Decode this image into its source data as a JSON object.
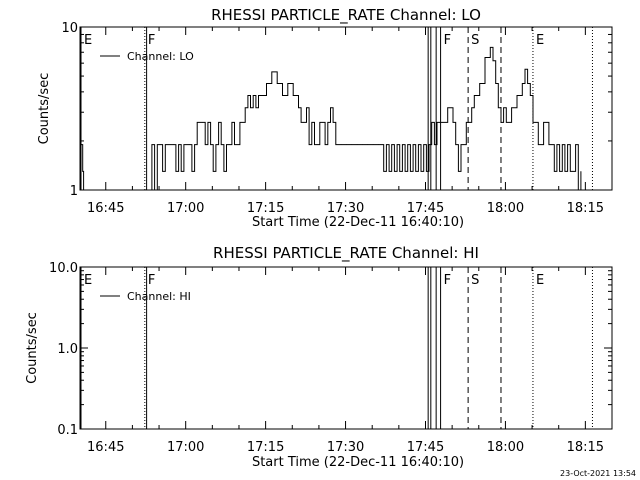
{
  "footer_timestamp": "23-Oct-2021 13:54",
  "colors": {
    "background": "#ffffff",
    "ink": "#000000"
  },
  "chart_data": [
    {
      "type": "line",
      "title": "RHESSI PARTICLE_RATE Channel: LO",
      "xlabel": "Start Time (22-Dec-11 16:40:10)",
      "ylabel": "Counts/sec",
      "x_scale": "time",
      "xlim": [
        "16:40:10",
        "18:20"
      ],
      "x_ticks": [
        "16:45",
        "17:00",
        "17:15",
        "17:30",
        "17:45",
        "18:00",
        "18:15"
      ],
      "y_scale": "log",
      "ylim": [
        1,
        10
      ],
      "y_ticks": [
        "1",
        "10"
      ],
      "legend": {
        "position": "top-left",
        "entries": [
          "Channel: LO"
        ]
      },
      "series": [
        {
          "name": "Channel: LO",
          "x": [
            "16:40:20",
            "16:40:40",
            "16:40:50",
            "16:53:10",
            "16:53:40",
            "16:54:10",
            "16:54:40",
            "16:55:10",
            "16:55:40",
            "16:56:10",
            "16:57:40",
            "16:58:10",
            "16:58:40",
            "16:59:10",
            "16:59:40",
            "17:00:40",
            "17:01:10",
            "17:01:40",
            "17:02:10",
            "17:03:10",
            "17:03:40",
            "17:04:10",
            "17:04:40",
            "17:05:10",
            "17:05:40",
            "17:06:10",
            "17:06:40",
            "17:07:10",
            "17:07:40",
            "17:08:10",
            "17:08:40",
            "17:09:10",
            "17:10:10",
            "17:10:40",
            "17:11:10",
            "17:11:40",
            "17:12:10",
            "17:12:40",
            "17:13:10",
            "17:13:40",
            "17:14:10",
            "17:15:10",
            "17:16:10",
            "17:17:10",
            "17:18:10",
            "17:19:10",
            "17:20:10",
            "17:21:10",
            "17:21:40",
            "17:22:10",
            "17:22:40",
            "17:23:10",
            "17:23:40",
            "17:24:10",
            "17:24:40",
            "17:25:10",
            "17:25:40",
            "17:26:10",
            "17:26:40",
            "17:27:10",
            "17:27:40",
            "17:28:10",
            "17:29:10",
            "17:30:10",
            "17:31:10",
            "17:32:10",
            "17:33:10",
            "17:34:10",
            "17:35:10",
            "17:36:10",
            "17:37:10",
            "17:37:40",
            "17:38:10",
            "17:38:40",
            "17:39:10",
            "17:39:40",
            "17:40:10",
            "17:40:40",
            "17:41:10",
            "17:41:40",
            "17:42:10",
            "17:42:40",
            "17:43:10",
            "17:43:40",
            "17:44:10",
            "17:44:40",
            "17:45:10",
            "17:45:40",
            "17:46:10",
            "17:46:40",
            "17:47:10",
            "17:48:10",
            "17:49:10",
            "17:50:10",
            "17:50:40",
            "17:51:10",
            "17:51:40",
            "17:52:10",
            "17:52:40",
            "17:53:10",
            "17:53:40",
            "17:54:10",
            "17:55:10",
            "17:56:10",
            "17:57:10",
            "17:57:40",
            "17:58:10",
            "17:58:40",
            "17:59:10",
            "17:59:40",
            "18:00:10",
            "18:01:10",
            "18:02:10",
            "18:03:10",
            "18:03:40",
            "18:04:10",
            "18:04:40",
            "18:05:10",
            "18:05:40",
            "18:06:10",
            "18:07:10",
            "18:07:40",
            "18:08:10",
            "18:08:40",
            "18:09:10",
            "18:09:40",
            "18:10:10",
            "18:10:40",
            "18:11:10",
            "18:11:40",
            "18:12:10",
            "18:12:40",
            "18:13:10",
            "18:13:40",
            "18:14:10"
          ],
          "values": [
            1.9,
            1.3,
            1,
            1,
            1.9,
            1,
            1.9,
            1.9,
            1.3,
            1.9,
            1.9,
            1.3,
            1.9,
            1.3,
            1.9,
            1.9,
            1.3,
            1.9,
            2.6,
            2.6,
            1.9,
            2.6,
            1.9,
            1.3,
            1.9,
            2.6,
            1.9,
            1.3,
            1.9,
            1.9,
            2.6,
            1.9,
            2.6,
            2.6,
            3.2,
            3.8,
            3.2,
            3.8,
            3.2,
            3.8,
            3.8,
            4.5,
            5.3,
            4.5,
            3.8,
            4.5,
            3.8,
            3.2,
            2.6,
            2.6,
            3.2,
            1.9,
            2.6,
            1.9,
            1.9,
            2.6,
            2.6,
            1.9,
            2.6,
            3.2,
            2.6,
            1.9,
            1.9,
            1.9,
            1.9,
            1.9,
            1.9,
            1.9,
            1.9,
            1.9,
            1.3,
            1.9,
            1.3,
            1.9,
            1.3,
            1.9,
            1.3,
            1.9,
            1.3,
            1.9,
            1.3,
            1.9,
            1.3,
            1.9,
            1.3,
            1.9,
            1.3,
            1.9,
            2.6,
            1.9,
            2.6,
            2.6,
            3.2,
            2.6,
            1.9,
            1.3,
            1.9,
            1.9,
            2.6,
            2.6,
            3.2,
            3.8,
            4.5,
            6.5,
            7.5,
            6.2,
            4.5,
            3.2,
            2.6,
            3.2,
            2.6,
            3.2,
            3.8,
            4.5,
            5.5,
            4.5,
            3.8,
            2.6,
            2.6,
            1.9,
            2.6,
            2.6,
            1.9,
            1.9,
            1.3,
            1.9,
            1.3,
            1.9,
            1.3,
            1.9,
            1.3,
            1.3,
            1.9,
            1,
            1.3
          ]
        }
      ],
      "annotations": [
        {
          "label": "E",
          "time": "16:40:10",
          "style": "solid"
        },
        {
          "label": "F",
          "time": "16:52:20",
          "style": "dotted"
        },
        {
          "label": "",
          "time": "16:52:40",
          "style": "solid"
        },
        {
          "label": "",
          "time": "17:45:30",
          "style": "solid"
        },
        {
          "label": "",
          "time": "17:46:00",
          "style": "solid"
        },
        {
          "label": "",
          "time": "17:47:00",
          "style": "solid"
        },
        {
          "label": "F",
          "time": "17:47:50",
          "style": "solid"
        },
        {
          "label": "S",
          "time": "17:53:00",
          "style": "dashed"
        },
        {
          "label": "",
          "time": "17:59:10",
          "style": "dashed"
        },
        {
          "label": "E",
          "time": "18:05:10",
          "style": "dotted"
        },
        {
          "label": "",
          "time": "18:16:20",
          "style": "dotted"
        }
      ]
    },
    {
      "type": "line",
      "title": "RHESSI PARTICLE_RATE Channel: HI",
      "xlabel": "Start Time (22-Dec-11 16:40:10)",
      "ylabel": "Counts/sec",
      "x_scale": "time",
      "xlim": [
        "16:40:10",
        "18:20"
      ],
      "x_ticks": [
        "16:45",
        "17:00",
        "17:15",
        "17:30",
        "17:45",
        "18:00",
        "18:15"
      ],
      "y_scale": "log",
      "ylim": [
        0.1,
        10
      ],
      "y_ticks": [
        "0.1",
        "1.0",
        "10.0"
      ],
      "legend": {
        "position": "top-left",
        "entries": [
          "Channel: HI"
        ]
      },
      "series": [
        {
          "name": "Channel: HI",
          "x": [],
          "values": []
        }
      ],
      "annotations": [
        {
          "label": "E",
          "time": "16:40:10",
          "style": "solid"
        },
        {
          "label": "F",
          "time": "16:52:20",
          "style": "dotted"
        },
        {
          "label": "",
          "time": "16:52:40",
          "style": "solid"
        },
        {
          "label": "",
          "time": "17:45:30",
          "style": "solid"
        },
        {
          "label": "",
          "time": "17:46:00",
          "style": "solid"
        },
        {
          "label": "",
          "time": "17:47:00",
          "style": "solid"
        },
        {
          "label": "F",
          "time": "17:47:50",
          "style": "solid"
        },
        {
          "label": "S",
          "time": "17:53:00",
          "style": "dashed"
        },
        {
          "label": "",
          "time": "17:59:10",
          "style": "dashed"
        },
        {
          "label": "E",
          "time": "18:05:10",
          "style": "dotted"
        },
        {
          "label": "",
          "time": "18:16:20",
          "style": "dotted"
        }
      ]
    }
  ]
}
